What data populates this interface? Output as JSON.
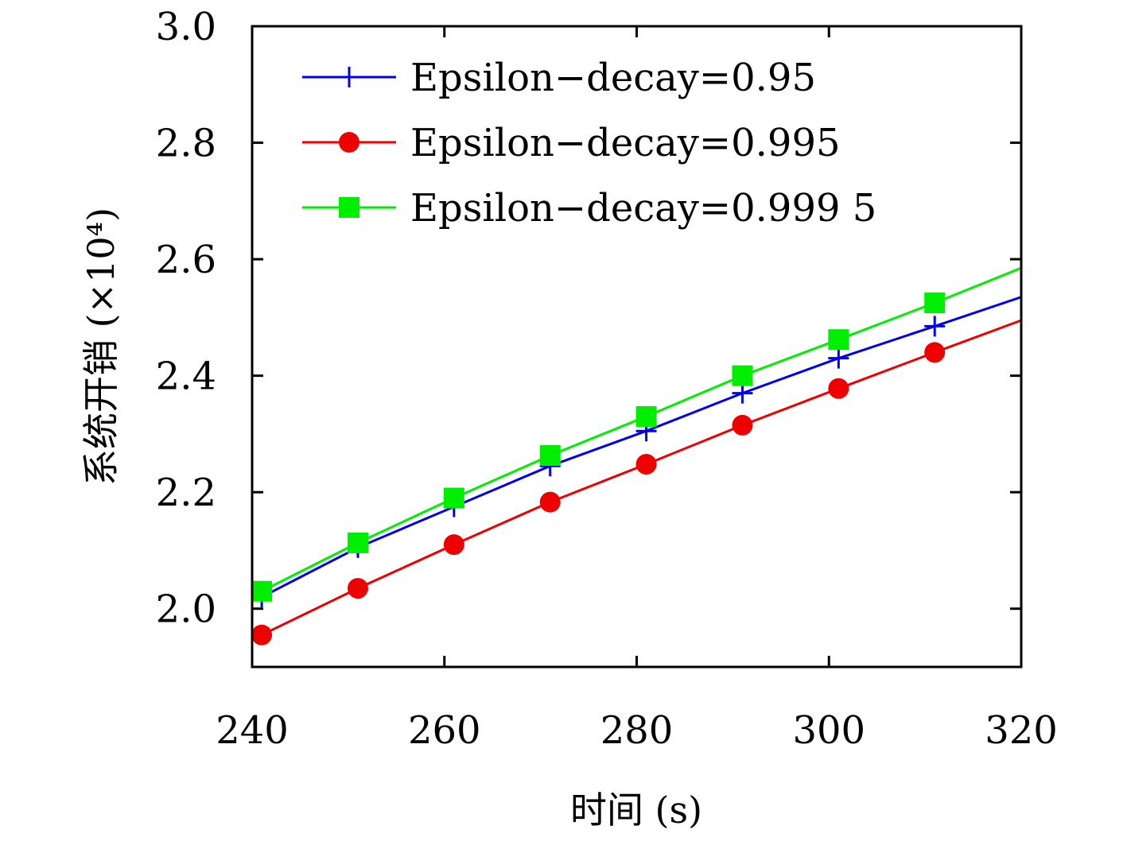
{
  "chart_data": {
    "type": "line",
    "xlabel": "时间 (s)",
    "ylabel": "系统开销 (×10⁴)",
    "xlim": [
      240,
      320
    ],
    "ylim": [
      1.9,
      3.0
    ],
    "xticks": [
      "240",
      "260",
      "280",
      "300",
      "320"
    ],
    "yticks": [
      "2.0",
      "2.2",
      "2.4",
      "2.6",
      "2.8",
      "3.0"
    ],
    "grid": false,
    "legend_position": "top-left",
    "series": [
      {
        "name": "Epsilon−decay=0.95",
        "color": "#0000ee",
        "marker": "plus",
        "x": [
          241,
          251,
          261,
          271,
          281,
          291,
          301,
          311,
          320
        ],
        "y": [
          2.02,
          2.105,
          2.175,
          2.245,
          2.305,
          2.37,
          2.43,
          2.485,
          2.535
        ]
      },
      {
        "name": "Epsilon−decay=0.995",
        "color": "#ee0000",
        "marker": "circle",
        "x": [
          241,
          251,
          261,
          271,
          281,
          291,
          301,
          311,
          320
        ],
        "y": [
          1.955,
          2.035,
          2.11,
          2.183,
          2.248,
          2.315,
          2.378,
          2.44,
          2.495
        ]
      },
      {
        "name": "Epsilon−decay=0.999 5",
        "color": "#00ee00",
        "marker": "square",
        "x": [
          241,
          251,
          261,
          271,
          281,
          291,
          301,
          311,
          320
        ],
        "y": [
          2.03,
          2.113,
          2.19,
          2.263,
          2.33,
          2.4,
          2.462,
          2.525,
          2.585
        ]
      }
    ]
  }
}
